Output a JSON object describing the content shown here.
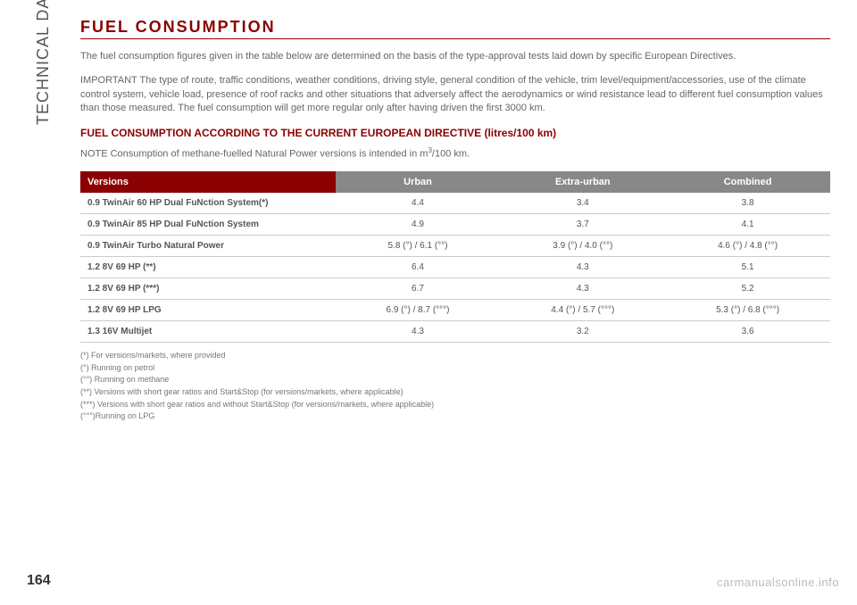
{
  "sidebar": {
    "label": "TECHNICAL DATA"
  },
  "heading": "FUEL CONSUMPTION",
  "para1": "The fuel consumption figures given in the table below are determined on the basis of the type-approval tests laid down by specific European Directives.",
  "para2": "IMPORTANT The type of route, traffic conditions, weather conditions, driving style, general condition of the vehicle, trim level/equipment/accessories, use of the climate control system, vehicle load, presence of roof racks and other situations that adversely affect the aerodynamics or wind resistance lead to different fuel consumption values than those measured. The fuel consumption will get more regular only after having driven the first 3000 km.",
  "subheading": "FUEL CONSUMPTION ACCORDING TO THE CURRENT EUROPEAN DIRECTIVE (litres/100 km)",
  "note_prefix": "NOTE Consumption of methane-fuelled Natural Power versions is intended in m",
  "note_sup": "3",
  "note_suffix": "/100 km.",
  "table": {
    "columns": [
      "Versions",
      "Urban",
      "Extra-urban",
      "Combined"
    ],
    "rows": [
      [
        "0.9 TwinAir 60 HP Dual FuNction System(*)",
        "4.4",
        "3.4",
        "3.8"
      ],
      [
        "0.9 TwinAir 85 HP Dual FuNction System",
        "4.9",
        "3.7",
        "4.1"
      ],
      [
        "0.9 TwinAir Turbo Natural Power",
        "5.8 (°) / 6.1 (°°)",
        "3.9 (°) / 4.0 (°°)",
        "4.6 (°) / 4.8 (°°)"
      ],
      [
        "1.2 8V 69 HP (**)",
        "6.4",
        "4.3",
        "5.1"
      ],
      [
        "1.2 8V 69 HP (***)",
        "6.7",
        "4.3",
        "5.2"
      ],
      [
        "1.2 8V 69 HP LPG",
        "6.9 (°) / 8.7 (°°°)",
        "4.4 (°) / 5.7 (°°°)",
        "5.3 (°) / 6.8 (°°°)"
      ],
      [
        "1.3 16V Multijet",
        "4.3",
        "3.2",
        "3.6"
      ]
    ]
  },
  "footnotes": [
    "(*) For versions/markets, where provided",
    "(°) Running on petrol",
    "(°°) Running on methane",
    "(**) Versions with short gear ratios and Start&Stop (for versions/markets, where applicable)",
    "(***) Versions with short gear ratios and without Start&Stop (for versions/markets, where applicable)",
    "(°°°)Running on LPG"
  ],
  "page_number": "164",
  "watermark": "carmanualsonline.info"
}
